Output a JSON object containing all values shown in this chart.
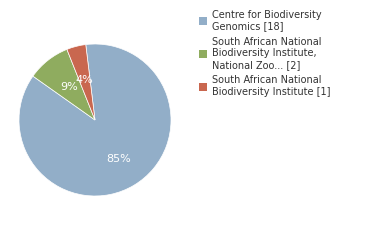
{
  "slices": [
    85,
    9,
    4
  ],
  "labels": [
    "Centre for Biodiversity\nGenomics [18]",
    "South African National\nBiodiversity Institute,\nNational Zoo... [2]",
    "South African National\nBiodiversity Institute [1]"
  ],
  "colors": [
    "#92aec8",
    "#8fac5f",
    "#c9674f"
  ],
  "autopct_labels": [
    "85%",
    "9%",
    "4%"
  ],
  "startangle": 97,
  "background_color": "#ffffff",
  "text_color": "#333333",
  "label_fontsize": 7.0
}
